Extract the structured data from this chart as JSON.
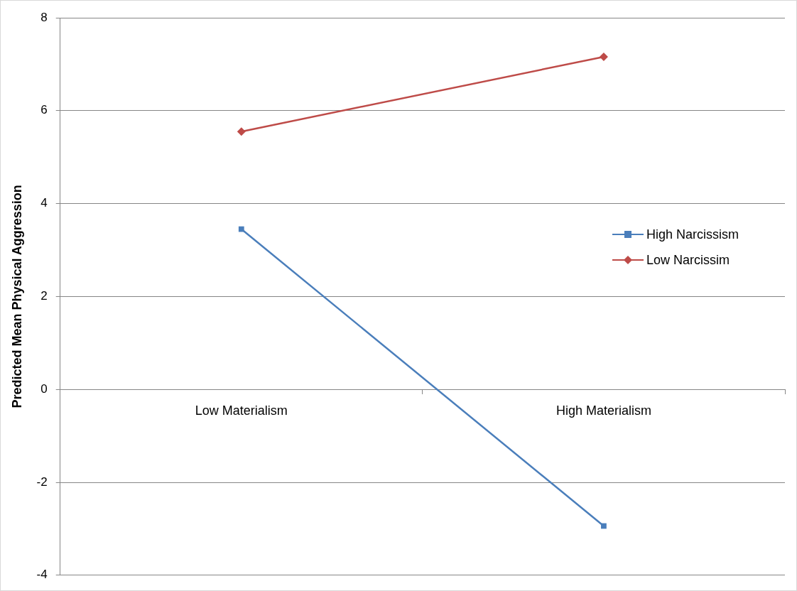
{
  "chart_data": {
    "type": "line",
    "ylabel": "Predicted Mean Physical Aggression",
    "categories": [
      "Low Materialism",
      "High Materialism"
    ],
    "series": [
      {
        "name": "High Narcissism",
        "color": "#4a7ebb",
        "marker": "square",
        "values": [
          3.45,
          -2.94
        ]
      },
      {
        "name": "Low Narcissim",
        "color": "#be4b48",
        "marker": "diamond",
        "values": [
          5.55,
          7.16
        ]
      }
    ],
    "ylim": [
      -4,
      8
    ],
    "yticks": [
      -4,
      -2,
      0,
      2,
      4,
      6,
      8
    ],
    "grid": "y",
    "legend": "right",
    "line_style": "solid"
  }
}
